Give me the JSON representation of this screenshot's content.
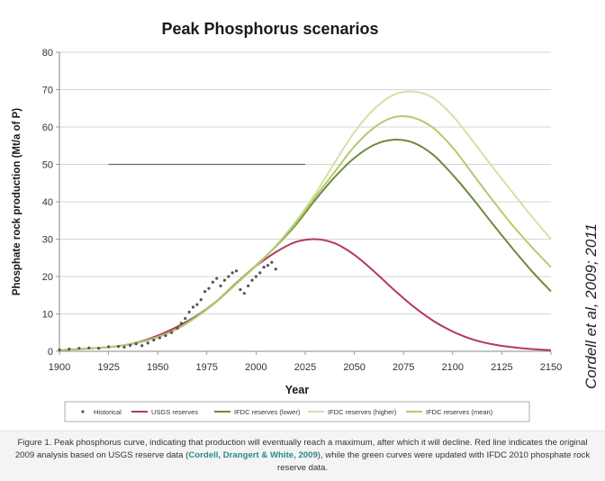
{
  "chart_data": {
    "type": "line",
    "title": "Peak Phosphorus scenarios",
    "xlabel": "Year",
    "ylabel": "Phosphate rock production (Mt/a of P)",
    "xlim": [
      1900,
      2150
    ],
    "ylim": [
      0,
      80
    ],
    "x_ticks": [
      "1900",
      "1925",
      "1950",
      "1975",
      "2000",
      "2025",
      "2050",
      "2075",
      "2100",
      "2125",
      "2150"
    ],
    "y_ticks": [
      "0",
      "10",
      "20",
      "30",
      "40",
      "50",
      "60",
      "70",
      "80"
    ],
    "grid": "horizontal",
    "legend_position": "bottom",
    "reference_line": {
      "x": [
        1925,
        2025
      ],
      "y": 50
    },
    "series": [
      {
        "name": "Historical",
        "style": "points",
        "color": "#555555",
        "x": [
          1900,
          1905,
          1910,
          1915,
          1920,
          1925,
          1930,
          1933,
          1936,
          1939,
          1942,
          1945,
          1948,
          1951,
          1954,
          1957,
          1960,
          1962,
          1964,
          1966,
          1968,
          1970,
          1972,
          1974,
          1976,
          1978,
          1980,
          1982,
          1984,
          1986,
          1988,
          1990,
          1992,
          1994,
          1996,
          1998,
          2000,
          2002,
          2004,
          2006,
          2008,
          2010
        ],
        "y": [
          0.4,
          0.6,
          0.8,
          0.9,
          0.8,
          1.2,
          1.3,
          1.1,
          1.6,
          2.0,
          1.5,
          2.2,
          3.0,
          3.6,
          4.2,
          5.0,
          6.2,
          7.5,
          8.8,
          10.5,
          11.8,
          12.5,
          13.8,
          16.0,
          16.8,
          18.5,
          19.5,
          17.5,
          19.0,
          20.0,
          21.0,
          21.5,
          16.5,
          15.5,
          17.5,
          19.0,
          20.0,
          21.0,
          22.5,
          23.0,
          23.8,
          22.0
        ]
      },
      {
        "name": "USGS reserves",
        "style": "line",
        "color": "#b33b55",
        "x": [
          1900,
          1910,
          1920,
          1930,
          1940,
          1950,
          1960,
          1970,
          1980,
          1990,
          2000,
          2010,
          2020,
          2030,
          2040,
          2050,
          2060,
          2070,
          2080,
          2090,
          2100,
          2110,
          2120,
          2130,
          2140,
          2150
        ],
        "y": [
          0.3,
          0.6,
          0.9,
          1.4,
          2.4,
          4.2,
          6.6,
          9.6,
          13.4,
          18.3,
          22.8,
          26.5,
          29.2,
          30.0,
          28.9,
          25.8,
          21.4,
          16.5,
          12.0,
          8.2,
          5.3,
          3.2,
          1.9,
          1.1,
          0.6,
          0.3
        ]
      },
      {
        "name": "IFDC reserves (lower)",
        "style": "line",
        "color": "#6e8a3e",
        "x": [
          1900,
          1910,
          1920,
          1930,
          1940,
          1950,
          1960,
          1970,
          1980,
          1990,
          2000,
          2010,
          2020,
          2030,
          2040,
          2050,
          2060,
          2070,
          2080,
          2090,
          2100,
          2110,
          2120,
          2130,
          2140,
          2150
        ],
        "y": [
          0.3,
          0.6,
          0.9,
          1.4,
          2.3,
          3.8,
          6.1,
          9.4,
          13.4,
          18.2,
          23.0,
          28.0,
          33.7,
          40.4,
          46.6,
          51.7,
          55.2,
          56.6,
          55.8,
          52.6,
          47.2,
          41.0,
          34.3,
          27.8,
          21.6,
          16.0
        ]
      },
      {
        "name": "IFDC reserves (higher)",
        "style": "line",
        "color": "#d2e2a8",
        "x": [
          1900,
          1910,
          1920,
          1930,
          1940,
          1950,
          1960,
          1970,
          1980,
          1990,
          2000,
          2010,
          2020,
          2030,
          2040,
          2050,
          2060,
          2070,
          2080,
          2090,
          2100,
          2110,
          2120,
          2130,
          2140,
          2150
        ],
        "y": [
          0.3,
          0.6,
          0.9,
          1.4,
          2.3,
          3.8,
          6.0,
          9.3,
          13.3,
          18.0,
          22.8,
          28.2,
          34.6,
          42.0,
          50.5,
          58.6,
          64.8,
          68.6,
          69.5,
          67.8,
          63.0,
          56.4,
          49.5,
          42.8,
          36.2,
          30.0
        ]
      },
      {
        "name": "IFDC reserves (mean)",
        "style": "line",
        "color": "#b3cb6e",
        "x": [
          1900,
          1910,
          1920,
          1930,
          1940,
          1950,
          1960,
          1970,
          1980,
          1990,
          2000,
          2010,
          2020,
          2030,
          2040,
          2050,
          2060,
          2070,
          2080,
          2090,
          2100,
          2110,
          2120,
          2130,
          2140,
          2150
        ],
        "y": [
          0.3,
          0.6,
          0.9,
          1.4,
          2.3,
          3.8,
          6.0,
          9.3,
          13.3,
          18.1,
          22.9,
          28.1,
          34.2,
          41.2,
          48.0,
          54.8,
          59.8,
          62.6,
          62.5,
          59.8,
          54.5,
          47.6,
          40.6,
          34.0,
          28.0,
          22.5
        ]
      }
    ]
  },
  "side_credit": "Cordell et al, 2009; 2011",
  "caption": {
    "before_link": "Figure 1. Peak phosphorus curve, indicating that production will eventually reach a maximum, after which it will decline. Red line indicates the original 2009 analysis based on USGS reserve data (",
    "link_text": "Cordell, Drangert & White, 2009",
    "after_link": "), while the green curves were updated with IFDC 2010 phosphate rock reserve data."
  }
}
